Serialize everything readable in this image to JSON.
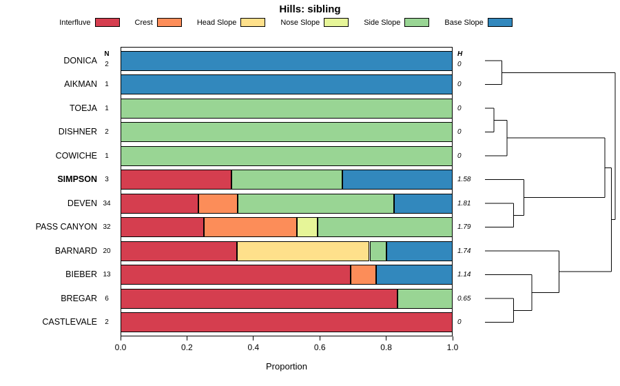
{
  "title": "Hills: sibling",
  "chart_data": {
    "type": "bar",
    "stacked": true,
    "orientation": "horizontal",
    "title": "Hills: sibling",
    "xlabel": "Proportion",
    "xlim": [
      0,
      1
    ],
    "xticks": [
      "0.0",
      "0.2",
      "0.4",
      "0.6",
      "0.8",
      "1.0"
    ],
    "legend_position": "top",
    "n_header": "N",
    "h_header": "H",
    "classes": [
      "Interfluve",
      "Crest",
      "Head Slope",
      "Nose Slope",
      "Side Slope",
      "Base Slope"
    ],
    "colors": {
      "Interfluve": "#D53E4F",
      "Crest": "#FC8D59",
      "Head Slope": "#FEE08B",
      "Nose Slope": "#E6F598",
      "Side Slope": "#99D594",
      "Base Slope": "#3288BD"
    },
    "rows": [
      {
        "label": "DONICA",
        "n": "2",
        "h": "0",
        "bold": false,
        "segments": [
          {
            "class": "Base Slope",
            "value": 1.0
          }
        ]
      },
      {
        "label": "AIKMAN",
        "n": "1",
        "h": "0",
        "bold": false,
        "segments": [
          {
            "class": "Base Slope",
            "value": 1.0
          }
        ]
      },
      {
        "label": "TOEJA",
        "n": "1",
        "h": "0",
        "bold": false,
        "segments": [
          {
            "class": "Side Slope",
            "value": 1.0
          }
        ]
      },
      {
        "label": "DISHNER",
        "n": "2",
        "h": "0",
        "bold": false,
        "segments": [
          {
            "class": "Side Slope",
            "value": 1.0
          }
        ]
      },
      {
        "label": "COWICHE",
        "n": "1",
        "h": "0",
        "bold": false,
        "segments": [
          {
            "class": "Side Slope",
            "value": 1.0
          }
        ]
      },
      {
        "label": "SIMPSON",
        "n": "3",
        "h": "1.58",
        "bold": true,
        "segments": [
          {
            "class": "Interfluve",
            "value": 0.333
          },
          {
            "class": "Side Slope",
            "value": 0.334
          },
          {
            "class": "Base Slope",
            "value": 0.333
          }
        ]
      },
      {
        "label": "DEVEN",
        "n": "34",
        "h": "1.81",
        "bold": false,
        "segments": [
          {
            "class": "Interfluve",
            "value": 0.235
          },
          {
            "class": "Crest",
            "value": 0.118
          },
          {
            "class": "Side Slope",
            "value": 0.471
          },
          {
            "class": "Base Slope",
            "value": 0.176
          }
        ]
      },
      {
        "label": "PASS CANYON",
        "n": "32",
        "h": "1.79",
        "bold": false,
        "segments": [
          {
            "class": "Interfluve",
            "value": 0.25
          },
          {
            "class": "Crest",
            "value": 0.281
          },
          {
            "class": "Nose Slope",
            "value": 0.063
          },
          {
            "class": "Side Slope",
            "value": 0.406
          }
        ]
      },
      {
        "label": "BARNARD",
        "n": "20",
        "h": "1.74",
        "bold": false,
        "segments": [
          {
            "class": "Interfluve",
            "value": 0.35
          },
          {
            "class": "Head Slope",
            "value": 0.4
          },
          {
            "class": "Side Slope",
            "value": 0.05
          },
          {
            "class": "Base Slope",
            "value": 0.2
          }
        ]
      },
      {
        "label": "BIEBER",
        "n": "13",
        "h": "1.14",
        "bold": false,
        "segments": [
          {
            "class": "Interfluve",
            "value": 0.692
          },
          {
            "class": "Crest",
            "value": 0.077
          },
          {
            "class": "Base Slope",
            "value": 0.231
          }
        ]
      },
      {
        "label": "BREGAR",
        "n": "6",
        "h": "0.65",
        "bold": false,
        "segments": [
          {
            "class": "Interfluve",
            "value": 0.833
          },
          {
            "class": "Side Slope",
            "value": 0.167
          }
        ]
      },
      {
        "label": "CASTLEVALE",
        "n": "2",
        "h": "0",
        "bold": false,
        "segments": [
          {
            "class": "Interfluve",
            "value": 1.0
          }
        ]
      }
    ]
  },
  "dendrogram": {
    "tree": {
      "height": 1.0,
      "children": [
        {
          "height": 0.13,
          "children": [
            {
              "leaf": "DONICA"
            },
            {
              "leaf": "AIKMAN"
            }
          ]
        },
        {
          "height": 0.97,
          "children": [
            {
              "height": 0.92,
              "children": [
                {
                  "height": 0.17,
                  "children": [
                    {
                      "height": 0.07,
                      "children": [
                        {
                          "leaf": "TOEJA"
                        },
                        {
                          "leaf": "DISHNER"
                        }
                      ]
                    },
                    {
                      "leaf": "COWICHE"
                    }
                  ]
                },
                {
                  "height": 0.3,
                  "children": [
                    {
                      "leaf": "SIMPSON"
                    },
                    {
                      "height": 0.22,
                      "children": [
                        {
                          "leaf": "DEVEN"
                        },
                        {
                          "leaf": "PASS CANYON"
                        }
                      ]
                    }
                  ]
                }
              ]
            },
            {
              "height": 0.57,
              "children": [
                {
                  "leaf": "BARNARD"
                },
                {
                  "height": 0.36,
                  "children": [
                    {
                      "leaf": "BIEBER"
                    },
                    {
                      "height": 0.22,
                      "children": [
                        {
                          "leaf": "BREGAR"
                        },
                        {
                          "leaf": "CASTLEVALE"
                        }
                      ]
                    }
                  ]
                }
              ]
            }
          ]
        }
      ]
    }
  }
}
